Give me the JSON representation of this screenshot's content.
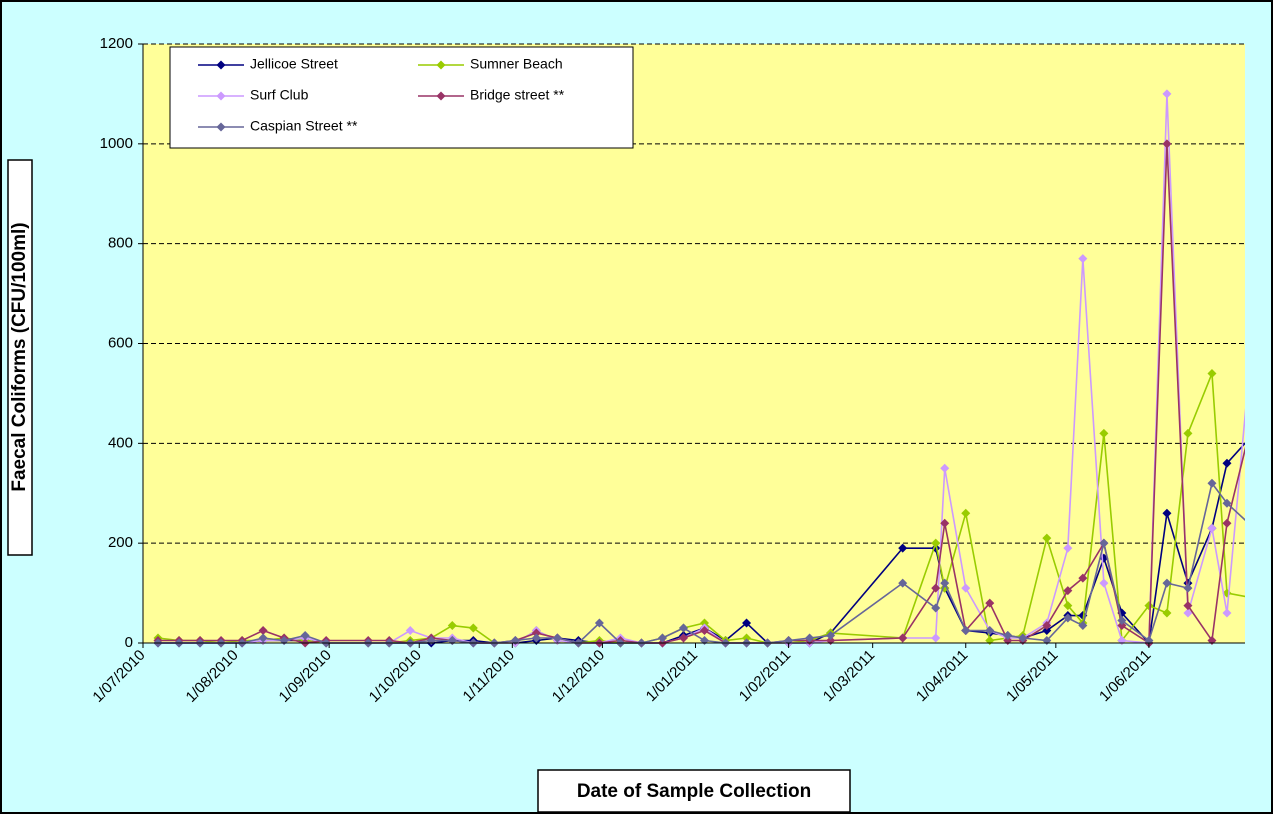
{
  "chart_data": {
    "type": "line",
    "y_label": "Faecal Coliforms (CFU/100ml)",
    "x_label": "Date of Sample Collection",
    "x": [
      "2010-07-06",
      "2010-07-13",
      "2010-07-20",
      "2010-07-27",
      "2010-08-03",
      "2010-08-10",
      "2010-08-17",
      "2010-08-24",
      "2010-08-31",
      "2010-09-14",
      "2010-09-21",
      "2010-09-28",
      "2010-10-05",
      "2010-10-12",
      "2010-10-19",
      "2010-10-26",
      "2010-11-02",
      "2010-11-09",
      "2010-11-16",
      "2010-11-23",
      "2010-11-30",
      "2010-12-07",
      "2010-12-14",
      "2010-12-21",
      "2010-12-28",
      "2011-01-04",
      "2011-01-11",
      "2011-01-18",
      "2011-01-25",
      "2011-02-01",
      "2011-02-08",
      "2011-02-15",
      "2011-03-11",
      "2011-03-22",
      "2011-03-25",
      "2011-04-01",
      "2011-04-09",
      "2011-04-15",
      "2011-04-20",
      "2011-04-28",
      "2011-05-05",
      "2011-05-10",
      "2011-05-17",
      "2011-05-23",
      "2011-06-01",
      "2011-06-07",
      "2011-06-14",
      "2011-06-22",
      "2011-06-27",
      "2011-07-06"
    ],
    "series": [
      {
        "name": "Jellicoe Street",
        "color": "#000080",
        "values": [
          0,
          0,
          0,
          0,
          0,
          5,
          5,
          5,
          0,
          0,
          0,
          0,
          0,
          5,
          5,
          0,
          0,
          5,
          10,
          5,
          0,
          0,
          0,
          0,
          15,
          30,
          5,
          40,
          0,
          0,
          0,
          20,
          190,
          190,
          110,
          25,
          20,
          15,
          10,
          25,
          55,
          55,
          170,
          60,
          0,
          260,
          120,
          230,
          360,
          420
        ]
      },
      {
        "name": "Sumner Beach",
        "color": "#99cc00",
        "values": [
          10,
          5,
          5,
          0,
          5,
          5,
          10,
          5,
          0,
          0,
          0,
          5,
          10,
          35,
          30,
          0,
          0,
          25,
          5,
          0,
          5,
          0,
          0,
          10,
          30,
          40,
          5,
          10,
          0,
          0,
          5,
          20,
          10,
          200,
          110,
          260,
          5,
          10,
          15,
          210,
          75,
          40,
          420,
          5,
          75,
          60,
          420,
          540,
          100,
          90
        ]
      },
      {
        "name": "Surf Club",
        "color": "#cc99ff",
        "values": [
          0,
          0,
          0,
          0,
          0,
          5,
          5,
          10,
          0,
          0,
          0,
          25,
          10,
          10,
          0,
          0,
          0,
          25,
          5,
          0,
          0,
          10,
          0,
          0,
          10,
          30,
          0,
          0,
          0,
          0,
          0,
          5,
          10,
          10,
          350,
          110,
          25,
          10,
          10,
          40,
          190,
          770,
          120,
          5,
          0,
          1100,
          60,
          230,
          60,
          650
        ]
      },
      {
        "name": "Bridge street **",
        "color": "#993366",
        "values": [
          5,
          5,
          5,
          5,
          5,
          25,
          10,
          0,
          5,
          5,
          5,
          0,
          10,
          5,
          0,
          0,
          5,
          20,
          10,
          0,
          0,
          5,
          0,
          0,
          10,
          25,
          0,
          0,
          0,
          5,
          5,
          5,
          10,
          110,
          240,
          25,
          80,
          5,
          5,
          35,
          105,
          130,
          200,
          35,
          0,
          1000,
          75,
          5,
          240,
          460
        ]
      },
      {
        "name": "Caspian Street **",
        "color": "#666699",
        "values": [
          0,
          0,
          0,
          0,
          0,
          10,
          5,
          15,
          0,
          0,
          0,
          0,
          5,
          5,
          0,
          0,
          5,
          10,
          10,
          0,
          40,
          0,
          0,
          10,
          30,
          5,
          0,
          0,
          0,
          5,
          10,
          15,
          120,
          70,
          120,
          25,
          25,
          15,
          10,
          5,
          50,
          35,
          200,
          45,
          5,
          120,
          110,
          320,
          280,
          230
        ]
      }
    ],
    "xlim": [
      "2010-07-01",
      "2011-07-03"
    ],
    "xticks": [
      {
        "value": "2010-07-01",
        "label": "1/07/2010"
      },
      {
        "value": "2010-08-01",
        "label": "1/08/2010"
      },
      {
        "value": "2010-09-01",
        "label": "1/09/2010"
      },
      {
        "value": "2010-10-01",
        "label": "1/10/2010"
      },
      {
        "value": "2010-11-01",
        "label": "1/11/2010"
      },
      {
        "value": "2010-12-01",
        "label": "1/12/2010"
      },
      {
        "value": "2011-01-01",
        "label": "1/01/2011"
      },
      {
        "value": "2011-02-01",
        "label": "1/02/2011"
      },
      {
        "value": "2011-03-01",
        "label": "1/03/2011"
      },
      {
        "value": "2011-04-01",
        "label": "1/04/2011"
      },
      {
        "value": "2011-05-01",
        "label": "1/05/2011"
      },
      {
        "value": "2011-06-01",
        "label": "1/06/2011"
      }
    ],
    "ylim": [
      0,
      1200
    ],
    "yticks": [
      0,
      200,
      400,
      600,
      800,
      1000,
      1200
    ],
    "grid": true,
    "legend": "top-left",
    "plot_color": "#ffff99",
    "background_color": "#ccffff"
  }
}
